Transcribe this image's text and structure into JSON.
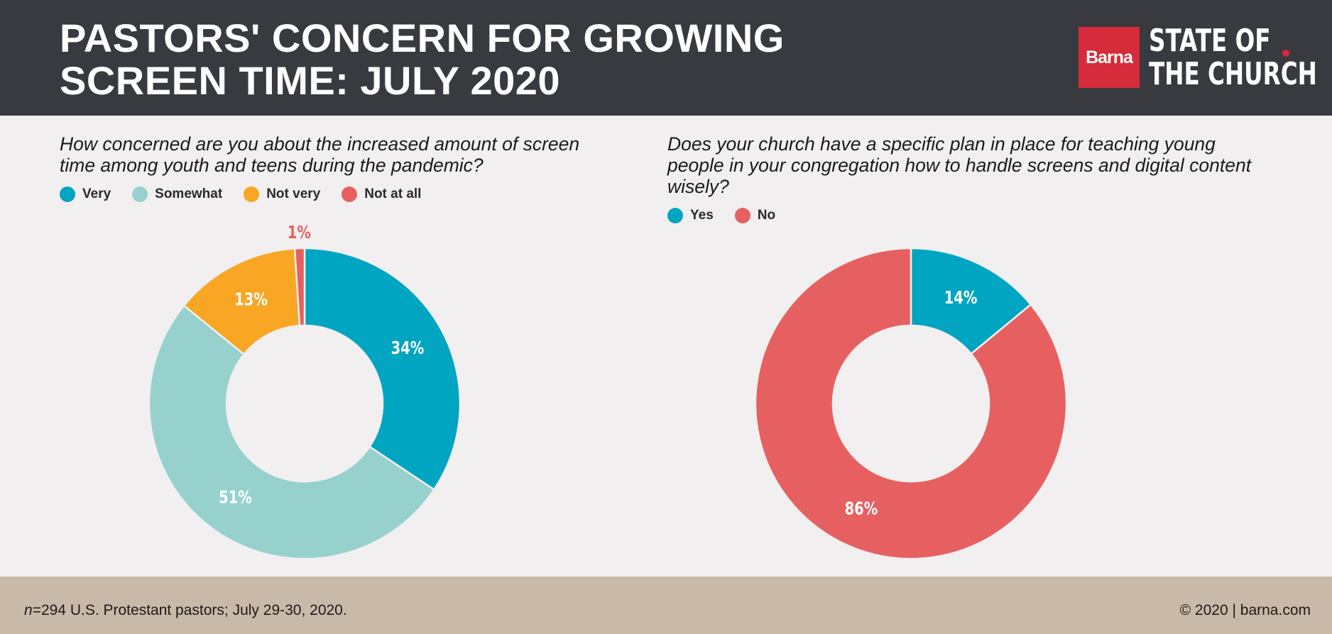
{
  "header": {
    "title_line1": "PASTORS' CONCERN FOR GROWING",
    "title_line2": "SCREEN TIME: JULY 2020",
    "logo_brand": "Barna",
    "logo_line1": "STATE OF",
    "logo_line2": "THE CHURCH"
  },
  "footer": {
    "n_label": "n",
    "sample": "=294 U.S. Protestant pastors; July 29-30, 2020.",
    "copyright": "© 2020 | barna.com"
  },
  "colors": {
    "header_bg": "#383a40",
    "very": "#00a5c2",
    "somewhat": "#96d1ce",
    "not_very": "#f8a624",
    "not_at_all": "#e66061",
    "yes": "#00a5c2",
    "no": "#e66061",
    "footer_bg": "#c9b9a9",
    "brand_red": "#d52b3a"
  },
  "chart_data": [
    {
      "type": "pie",
      "title": "How concerned are you about the increased amount of screen time among youth and teens during the pandemic?",
      "legend_position": "top-left",
      "categories": [
        "Very",
        "Somewhat",
        "Not very",
        "Not at all"
      ],
      "values": [
        34,
        51,
        13,
        1
      ],
      "labels": [
        "34%",
        "51%",
        "13%",
        "1%"
      ],
      "colors": [
        "#00a5c2",
        "#96d1ce",
        "#f8a624",
        "#e66061"
      ]
    },
    {
      "type": "pie",
      "title": "Does your church have a specific plan in place for teaching young people in your congregation how to handle screens and digital content wisely?",
      "legend_position": "top-left",
      "categories": [
        "Yes",
        "No"
      ],
      "values": [
        14,
        86
      ],
      "labels": [
        "14%",
        "86%"
      ],
      "colors": [
        "#00a5c2",
        "#e66061"
      ]
    }
  ]
}
